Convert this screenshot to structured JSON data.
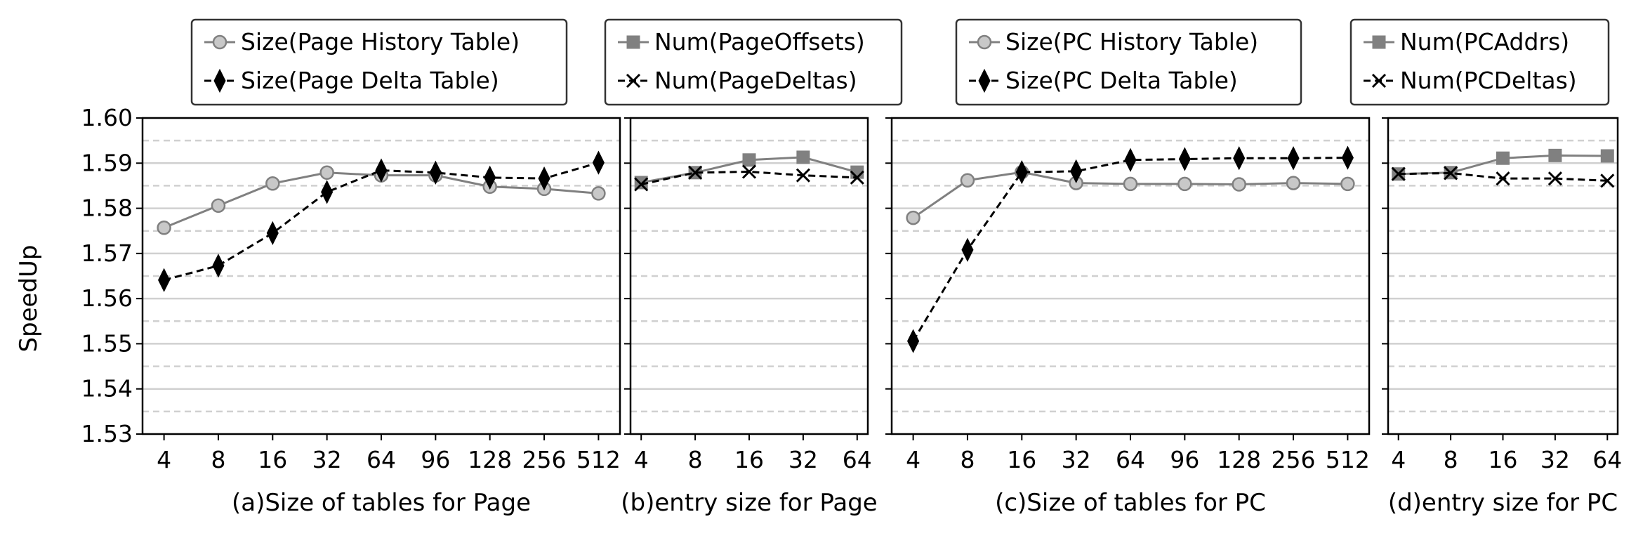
{
  "figure": {
    "ylabel": "SpeedUp",
    "ylim": [
      1.53,
      1.6
    ],
    "yticks": [
      "1.53",
      "1.54",
      "1.55",
      "1.56",
      "1.57",
      "1.58",
      "1.59",
      "1.60"
    ]
  },
  "chart_data": [
    {
      "type": "line",
      "xlabel": "(a)Size of tables for Page",
      "categories": [
        "4",
        "8",
        "16",
        "32",
        "64",
        "96",
        "128",
        "256",
        "512"
      ],
      "ylim": [
        1.53,
        1.6
      ],
      "grid": true,
      "legend_position": "top",
      "series": [
        {
          "name": "Size(Page History Table)",
          "marker": "circle",
          "color": "#808080",
          "dash": false,
          "values": [
            1.5757,
            1.5806,
            1.5855,
            1.5879,
            1.5873,
            1.5873,
            1.5848,
            1.5843,
            1.5833
          ]
        },
        {
          "name": "Size(Page Delta Table)",
          "marker": "diamond",
          "color": "#000000",
          "dash": true,
          "values": [
            1.5641,
            1.5673,
            1.5745,
            1.5836,
            1.5884,
            1.5879,
            1.5868,
            1.5866,
            1.5901
          ]
        }
      ]
    },
    {
      "type": "line",
      "xlabel": "(b)entry size for Page",
      "categories": [
        "4",
        "8",
        "16",
        "32",
        "64"
      ],
      "ylim": [
        1.53,
        1.6
      ],
      "grid": true,
      "legend_position": "top",
      "series": [
        {
          "name": "Num(PageOffsets)",
          "marker": "square",
          "color": "#808080",
          "dash": false,
          "values": [
            1.5857,
            1.5879,
            1.5907,
            1.5913,
            1.588
          ]
        },
        {
          "name": "Num(PageDeltas)",
          "marker": "x",
          "color": "#000000",
          "dash": true,
          "values": [
            1.5853,
            1.5879,
            1.5881,
            1.5873,
            1.5868
          ]
        }
      ]
    },
    {
      "type": "line",
      "xlabel": "(c)Size of tables for PC",
      "categories": [
        "4",
        "8",
        "16",
        "32",
        "64",
        "96",
        "128",
        "256",
        "512"
      ],
      "ylim": [
        1.53,
        1.6
      ],
      "grid": true,
      "legend_position": "top",
      "series": [
        {
          "name": "Size(PC History Table)",
          "marker": "circle",
          "color": "#808080",
          "dash": false,
          "values": [
            1.5779,
            1.5862,
            1.588,
            1.5856,
            1.5854,
            1.5854,
            1.5853,
            1.5856,
            1.5854
          ]
        },
        {
          "name": "Size(PC Delta Table)",
          "marker": "diamond",
          "color": "#000000",
          "dash": true,
          "values": [
            1.5506,
            1.5708,
            1.588,
            1.5882,
            1.5907,
            1.5909,
            1.5911,
            1.5911,
            1.5912
          ]
        }
      ]
    },
    {
      "type": "line",
      "xlabel": "(d)entry size for PC",
      "categories": [
        "4",
        "8",
        "16",
        "32",
        "64"
      ],
      "ylim": [
        1.53,
        1.6
      ],
      "grid": true,
      "legend_position": "top",
      "series": [
        {
          "name": "Num(PCAddrs)",
          "marker": "square",
          "color": "#808080",
          "dash": false,
          "values": [
            1.5876,
            1.5879,
            1.5911,
            1.5917,
            1.5916
          ]
        },
        {
          "name": "Num(PCDeltas)",
          "marker": "x",
          "color": "#000000",
          "dash": true,
          "values": [
            1.5876,
            1.5878,
            1.5866,
            1.5866,
            1.5861
          ]
        }
      ]
    }
  ]
}
